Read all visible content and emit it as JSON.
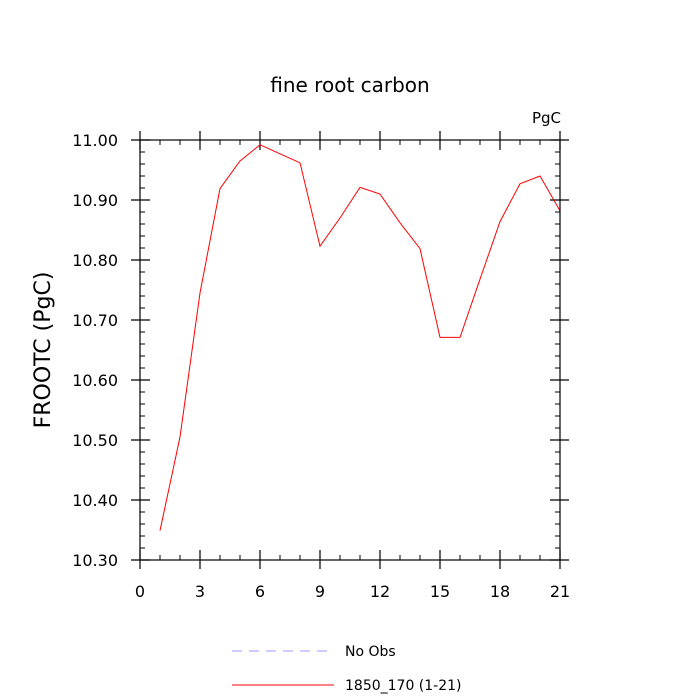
{
  "chart_data": {
    "type": "line",
    "title": "fine root carbon",
    "units_label": "PgC",
    "ylabel": "FROOTC  (PgC)",
    "xlabel": "",
    "xlim": [
      0,
      21
    ],
    "ylim": [
      10.3,
      11.0
    ],
    "x_ticks": [
      0,
      3,
      6,
      9,
      12,
      15,
      18,
      21
    ],
    "x_tick_labels": [
      "0",
      "3",
      "6",
      "9",
      "12",
      "15",
      "18",
      "21"
    ],
    "y_ticks": [
      10.3,
      10.4,
      10.5,
      10.6,
      10.7,
      10.8,
      10.9,
      11.0
    ],
    "y_tick_labels": [
      "10.30",
      "10.40",
      "10.50",
      "10.60",
      "10.70",
      "10.80",
      "10.90",
      "11.00"
    ],
    "x_minor_step": 1,
    "y_minor_step": 0.02,
    "grid": false,
    "legend_position": "bottom-center",
    "series": [
      {
        "name": "1850_170 (1-21)",
        "color": "#ff0000",
        "dash": "solid",
        "x": [
          1,
          2,
          3,
          4,
          5,
          6,
          7,
          8,
          9,
          10,
          11,
          12,
          13,
          14,
          15,
          16,
          17,
          18,
          19,
          20,
          21
        ],
        "y": [
          10.349,
          10.505,
          10.745,
          10.919,
          10.965,
          10.992,
          10.977,
          10.962,
          10.823,
          10.87,
          10.921,
          10.91,
          10.862,
          10.819,
          10.671,
          10.671,
          10.768,
          10.864,
          10.927,
          10.94,
          10.882
        ]
      }
    ],
    "legend": [
      {
        "label": "No Obs",
        "color": "#9999ff",
        "dash": "dashed"
      },
      {
        "label": "1850_170 (1-21)",
        "color": "#ff0000",
        "dash": "solid"
      }
    ]
  }
}
